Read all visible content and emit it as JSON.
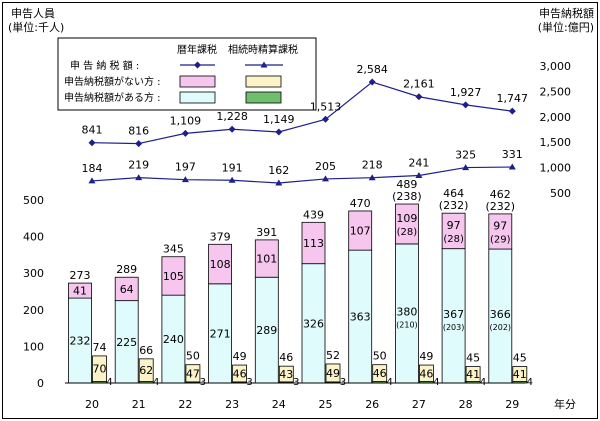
{
  "chart_data": {
    "type": "bar",
    "categories": [
      "20",
      "21",
      "22",
      "23",
      "24",
      "25",
      "26",
      "27",
      "28",
      "29"
    ],
    "x_unit": "年分",
    "left_axis": {
      "title": "申告人員",
      "unit": "(単位:千人)",
      "ylim": [
        0,
        500
      ],
      "ticks": [
        0,
        100,
        200,
        300,
        400,
        500
      ]
    },
    "right_axis": {
      "title": "申告納税額",
      "unit": "(単位:億円)",
      "ticks": [
        500,
        1000,
        1500,
        2000,
        2500,
        3000
      ],
      "tick_labels": [
        "500",
        "1,000",
        "1,500",
        "2,000",
        "2,500",
        "3,000"
      ]
    },
    "legend": {
      "header_rekinen": "暦年課税",
      "header_souzoku": "相続時精算課税",
      "row_tax_amount": "申 告 納 税 額 :",
      "row_no_tax": "申告納税額がない方 :",
      "row_with_tax": "申告納税額がある方 :",
      "placement": "top-center"
    },
    "tax_amount_series": [
      {
        "name": "暦年課税",
        "values": [
          841,
          816,
          1109,
          1228,
          1149,
          1513,
          2584,
          2161,
          1927,
          1747
        ],
        "labels": [
          "841",
          "816",
          "1,109",
          "1,228",
          "1,149",
          "1,513",
          "2,584",
          "2,161",
          "1,927",
          "1,747"
        ],
        "color": "#1f1f8c",
        "marker": "diamond"
      },
      {
        "name": "相続時精算課税",
        "values": [
          184,
          219,
          197,
          191,
          162,
          205,
          218,
          241,
          325,
          331
        ],
        "labels": [
          "184",
          "219",
          "197",
          "191",
          "162",
          "205",
          "218",
          "241",
          "325",
          "331"
        ],
        "color": "#1f1f8c",
        "marker": "triangle"
      }
    ],
    "rekinen_bars": {
      "with_tax": [
        232,
        225,
        240,
        271,
        289,
        326,
        363,
        380,
        367,
        366
      ],
      "no_tax": [
        41,
        64,
        105,
        108,
        101,
        113,
        107,
        109,
        97,
        97
      ],
      "totals": [
        273,
        289,
        345,
        379,
        391,
        439,
        470,
        489,
        464,
        462
      ],
      "with_tax_sub": [
        "",
        "",
        "",
        "",
        "",
        "",
        "",
        "(210)",
        "(203)",
        "(202)"
      ],
      "no_tax_sub": [
        "",
        "",
        "",
        "",
        "",
        "",
        "",
        "(28)",
        "(28)",
        "(29)"
      ],
      "totals_sub": [
        "",
        "",
        "",
        "",
        "",
        "",
        "",
        "(238)",
        "(232)",
        "(232)"
      ],
      "color_with_tax": "#e0fbfb",
      "color_no_tax": "#f6c6ee"
    },
    "souzoku_bars": {
      "with_tax": [
        4,
        4,
        3,
        3,
        3,
        3,
        4,
        4,
        4,
        4
      ],
      "no_tax": [
        70,
        62,
        47,
        46,
        43,
        49,
        46,
        46,
        41,
        41
      ],
      "totals": [
        74,
        66,
        50,
        49,
        46,
        52,
        50,
        49,
        45,
        45
      ],
      "color_with_tax": "#6fbf6f",
      "color_no_tax": "#fdf3c8"
    },
    "grid": false
  }
}
